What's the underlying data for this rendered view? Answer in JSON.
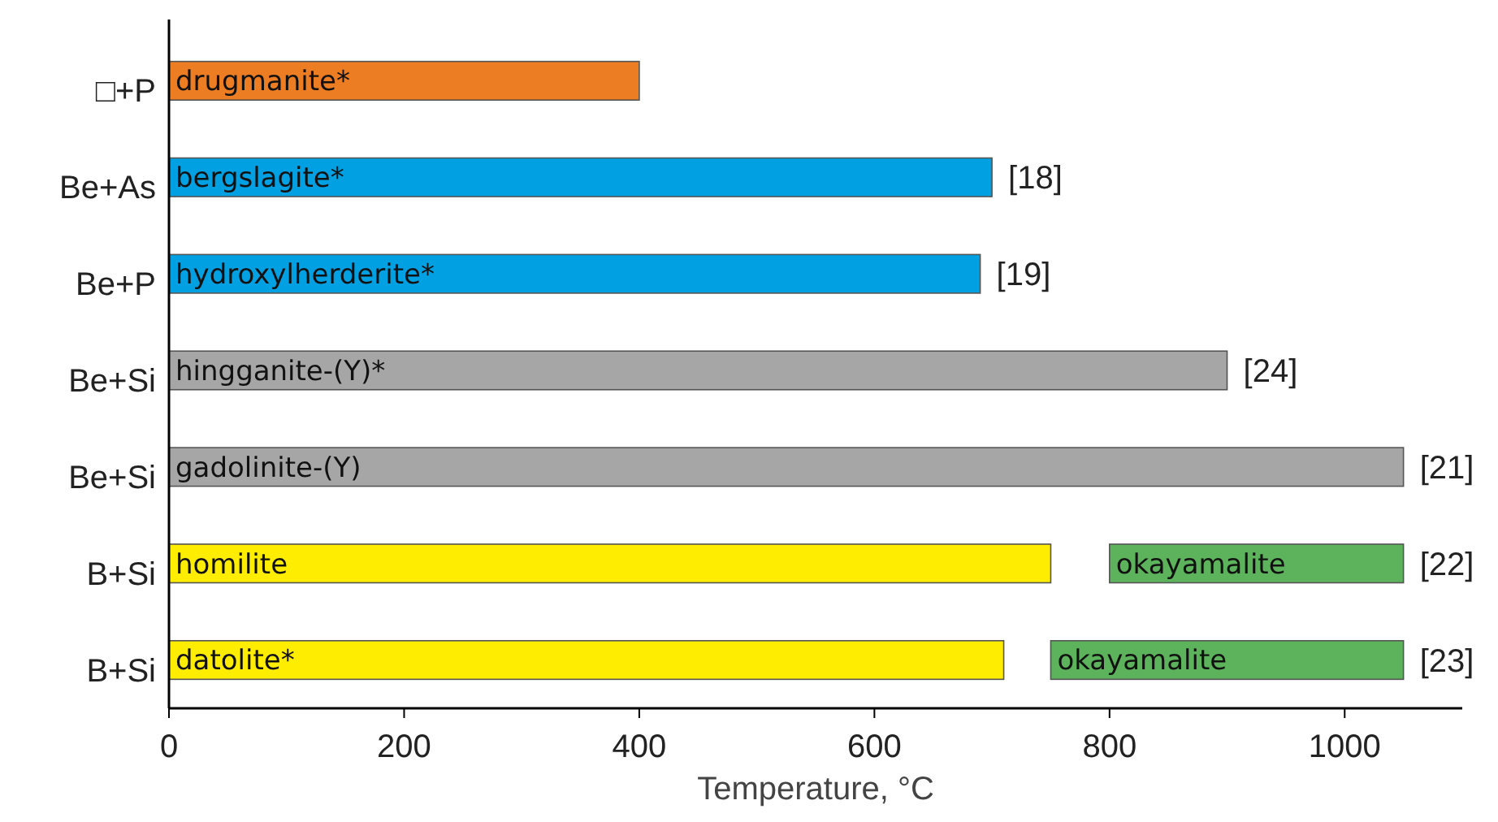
{
  "chart_data": {
    "type": "bar",
    "orientation": "horizontal",
    "xlabel": "Temperature, °C",
    "categories": [
      "□+P",
      "Be+As",
      "Be+P",
      "Be+Si",
      "Be+Si",
      "B+Si",
      "B+Si"
    ],
    "series": [
      {
        "colors": [
          "#ed7d22",
          "#00a0e3",
          "#00a0e3",
          "#a6a6a6",
          "#a6a6a6",
          "#ffed00",
          "#ffed00"
        ],
        "values": [
          400,
          700,
          690,
          900,
          1050,
          750,
          710
        ],
        "value_labels": [
          "drugmanite*",
          "bergslagite*",
          "hydroxylherderite*",
          "hingganite-(Y)*",
          "gadolinite-(Y)",
          "homilite",
          "datolite*"
        ]
      },
      {
        "colors": [
          null,
          null,
          null,
          null,
          null,
          "#5cb35c",
          "#5cb35c"
        ],
        "base": [
          null,
          null,
          null,
          null,
          null,
          800,
          750
        ],
        "values": [
          null,
          null,
          null,
          null,
          null,
          250,
          300
        ],
        "value_labels": [
          null,
          null,
          null,
          null,
          null,
          "okayamalite",
          "okayamalite"
        ]
      }
    ],
    "annotations": [
      "[18]",
      "[19]",
      "[24]",
      "[21]",
      "[22]",
      "[23]"
    ],
    "xlim": [
      0,
      1100
    ],
    "xticks": [
      0,
      200,
      400,
      600,
      800,
      1000
    ],
    "grid": false
  }
}
